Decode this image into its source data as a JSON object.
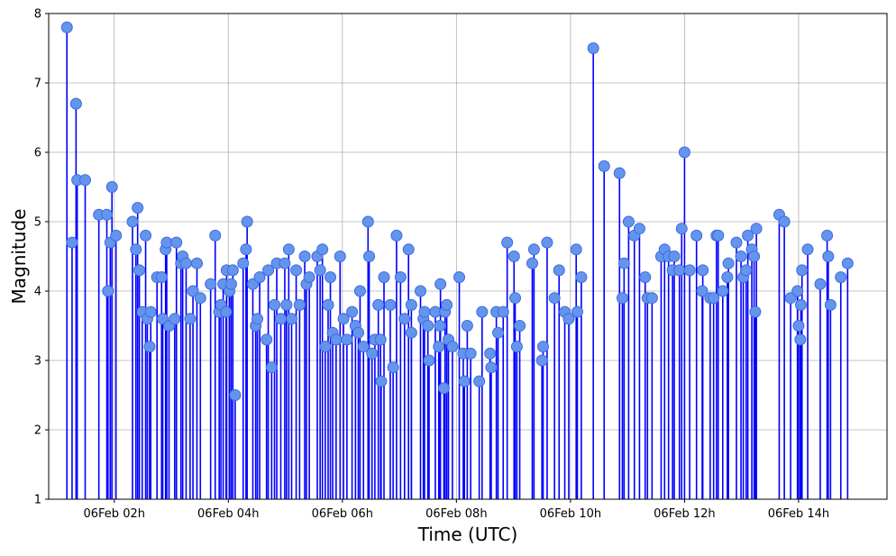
{
  "chart_data": {
    "type": "stem",
    "xlabel": "Time (UTC)",
    "ylabel": "Magnitude",
    "x_unit": "hours since 06Feb 00:00 UTC",
    "xlim": [
      0.85,
      15.55
    ],
    "ylim": [
      1,
      8
    ],
    "yticks": [
      1,
      2,
      3,
      4,
      5,
      6,
      7,
      8
    ],
    "xticks": [
      {
        "value": 2,
        "label": "06Feb 02h"
      },
      {
        "value": 4,
        "label": "06Feb 04h"
      },
      {
        "value": 6,
        "label": "06Feb 06h"
      },
      {
        "value": 8,
        "label": "06Feb 08h"
      },
      {
        "value": 10,
        "label": "06Feb 10h"
      },
      {
        "value": 12,
        "label": "06Feb 12h"
      },
      {
        "value": 14,
        "label": "06Feb 14h"
      }
    ],
    "grid": true,
    "stem_color": "#0000ff",
    "marker_fill": "#6495ed",
    "marker_edge": "#4169e1",
    "points": [
      [
        1.17,
        7.8
      ],
      [
        1.26,
        4.7
      ],
      [
        1.33,
        6.7
      ],
      [
        1.35,
        5.6
      ],
      [
        1.49,
        5.6
      ],
      [
        1.73,
        5.1
      ],
      [
        1.87,
        5.1
      ],
      [
        1.89,
        4.0
      ],
      [
        1.93,
        4.7
      ],
      [
        1.96,
        5.5
      ],
      [
        2.03,
        4.8
      ],
      [
        2.32,
        5.0
      ],
      [
        2.38,
        4.6
      ],
      [
        2.41,
        5.2
      ],
      [
        2.44,
        4.3
      ],
      [
        2.49,
        3.7
      ],
      [
        2.55,
        4.8
      ],
      [
        2.58,
        3.6
      ],
      [
        2.62,
        3.2
      ],
      [
        2.64,
        3.7
      ],
      [
        2.75,
        4.2
      ],
      [
        2.83,
        4.2
      ],
      [
        2.85,
        3.6
      ],
      [
        2.9,
        4.6
      ],
      [
        2.92,
        4.7
      ],
      [
        2.96,
        3.5
      ],
      [
        3.06,
        3.6
      ],
      [
        3.09,
        4.7
      ],
      [
        3.17,
        4.4
      ],
      [
        3.2,
        4.5
      ],
      [
        3.26,
        4.4
      ],
      [
        3.33,
        3.6
      ],
      [
        3.38,
        4.0
      ],
      [
        3.45,
        4.4
      ],
      [
        3.51,
        3.9
      ],
      [
        3.69,
        4.1
      ],
      [
        3.77,
        4.8
      ],
      [
        3.84,
        3.7
      ],
      [
        3.87,
        3.8
      ],
      [
        3.91,
        4.1
      ],
      [
        3.96,
        3.7
      ],
      [
        3.97,
        4.3
      ],
      [
        4.02,
        4.0
      ],
      [
        4.05,
        4.1
      ],
      [
        4.08,
        4.3
      ],
      [
        4.12,
        2.5
      ],
      [
        4.26,
        4.4
      ],
      [
        4.31,
        4.6
      ],
      [
        4.33,
        5.0
      ],
      [
        4.43,
        4.1
      ],
      [
        4.48,
        3.5
      ],
      [
        4.51,
        3.6
      ],
      [
        4.55,
        4.2
      ],
      [
        4.67,
        3.3
      ],
      [
        4.7,
        4.3
      ],
      [
        4.76,
        2.9
      ],
      [
        4.81,
        3.8
      ],
      [
        4.85,
        4.4
      ],
      [
        4.92,
        3.6
      ],
      [
        4.99,
        4.4
      ],
      [
        5.02,
        3.8
      ],
      [
        5.06,
        4.6
      ],
      [
        5.11,
        3.6
      ],
      [
        5.19,
        4.3
      ],
      [
        5.25,
        3.8
      ],
      [
        5.34,
        4.5
      ],
      [
        5.37,
        4.1
      ],
      [
        5.42,
        4.2
      ],
      [
        5.56,
        4.5
      ],
      [
        5.61,
        4.3
      ],
      [
        5.65,
        4.6
      ],
      [
        5.7,
        3.2
      ],
      [
        5.75,
        3.8
      ],
      [
        5.79,
        4.2
      ],
      [
        5.83,
        3.4
      ],
      [
        5.89,
        3.3
      ],
      [
        5.96,
        4.5
      ],
      [
        6.02,
        3.6
      ],
      [
        6.08,
        3.3
      ],
      [
        6.17,
        3.7
      ],
      [
        6.23,
        3.5
      ],
      [
        6.28,
        3.4
      ],
      [
        6.31,
        4.0
      ],
      [
        6.37,
        3.2
      ],
      [
        6.45,
        5.0
      ],
      [
        6.47,
        4.5
      ],
      [
        6.52,
        3.1
      ],
      [
        6.57,
        3.3
      ],
      [
        6.63,
        3.8
      ],
      [
        6.67,
        3.3
      ],
      [
        6.68,
        2.7
      ],
      [
        6.73,
        4.2
      ],
      [
        6.84,
        3.8
      ],
      [
        6.89,
        2.9
      ],
      [
        6.95,
        4.8
      ],
      [
        7.02,
        4.2
      ],
      [
        7.09,
        3.6
      ],
      [
        7.16,
        4.6
      ],
      [
        7.21,
        3.4
      ],
      [
        7.21,
        3.8
      ],
      [
        7.37,
        4.0
      ],
      [
        7.42,
        3.6
      ],
      [
        7.44,
        3.7
      ],
      [
        7.5,
        3.5
      ],
      [
        7.52,
        3.0
      ],
      [
        7.63,
        3.7
      ],
      [
        7.69,
        3.2
      ],
      [
        7.71,
        3.5
      ],
      [
        7.72,
        4.1
      ],
      [
        7.78,
        2.6
      ],
      [
        7.8,
        3.7
      ],
      [
        7.83,
        3.8
      ],
      [
        7.86,
        3.3
      ],
      [
        7.93,
        3.2
      ],
      [
        8.05,
        4.2
      ],
      [
        8.12,
        3.1
      ],
      [
        8.14,
        2.7
      ],
      [
        8.19,
        3.5
      ],
      [
        8.25,
        3.1
      ],
      [
        8.4,
        2.7
      ],
      [
        8.45,
        3.7
      ],
      [
        8.59,
        3.1
      ],
      [
        8.61,
        2.9
      ],
      [
        8.7,
        3.7
      ],
      [
        8.73,
        3.4
      ],
      [
        8.82,
        3.7
      ],
      [
        8.89,
        4.7
      ],
      [
        9.01,
        4.5
      ],
      [
        9.03,
        3.9
      ],
      [
        9.06,
        3.2
      ],
      [
        9.11,
        3.5
      ],
      [
        9.33,
        4.4
      ],
      [
        9.36,
        4.6
      ],
      [
        9.5,
        3.0
      ],
      [
        9.52,
        3.2
      ],
      [
        9.59,
        4.7
      ],
      [
        9.72,
        3.9
      ],
      [
        9.8,
        4.3
      ],
      [
        9.9,
        3.7
      ],
      [
        9.97,
        3.6
      ],
      [
        10.1,
        4.6
      ],
      [
        10.12,
        3.7
      ],
      [
        10.19,
        4.2
      ],
      [
        10.4,
        7.5
      ],
      [
        10.59,
        5.8
      ],
      [
        10.86,
        5.7
      ],
      [
        10.91,
        3.9
      ],
      [
        10.94,
        4.4
      ],
      [
        11.02,
        5.0
      ],
      [
        11.12,
        4.8
      ],
      [
        11.21,
        4.9
      ],
      [
        11.31,
        4.2
      ],
      [
        11.35,
        3.9
      ],
      [
        11.43,
        3.9
      ],
      [
        11.59,
        4.5
      ],
      [
        11.65,
        4.6
      ],
      [
        11.72,
        4.5
      ],
      [
        11.79,
        4.3
      ],
      [
        11.82,
        4.5
      ],
      [
        11.91,
        4.3
      ],
      [
        11.95,
        4.9
      ],
      [
        12.0,
        6.0
      ],
      [
        12.09,
        4.3
      ],
      [
        12.21,
        4.8
      ],
      [
        12.31,
        4.0
      ],
      [
        12.32,
        4.3
      ],
      [
        12.45,
        3.9
      ],
      [
        12.51,
        3.9
      ],
      [
        12.56,
        4.8
      ],
      [
        12.59,
        4.8
      ],
      [
        12.67,
        4.0
      ],
      [
        12.75,
        4.2
      ],
      [
        12.77,
        4.4
      ],
      [
        12.91,
        4.7
      ],
      [
        12.99,
        4.5
      ],
      [
        13.03,
        4.2
      ],
      [
        13.08,
        4.3
      ],
      [
        13.11,
        4.8
      ],
      [
        13.18,
        4.6
      ],
      [
        13.22,
        4.5
      ],
      [
        13.24,
        3.7
      ],
      [
        13.26,
        4.9
      ],
      [
        13.66,
        5.1
      ],
      [
        13.75,
        5.0
      ],
      [
        13.86,
        3.9
      ],
      [
        13.98,
        4.0
      ],
      [
        14.0,
        3.5
      ],
      [
        14.03,
        3.3
      ],
      [
        14.04,
        3.8
      ],
      [
        14.06,
        4.3
      ],
      [
        14.16,
        4.6
      ],
      [
        14.38,
        4.1
      ],
      [
        14.5,
        4.8
      ],
      [
        14.52,
        4.5
      ],
      [
        14.56,
        3.8
      ],
      [
        14.74,
        4.2
      ],
      [
        14.86,
        4.4
      ]
    ]
  }
}
